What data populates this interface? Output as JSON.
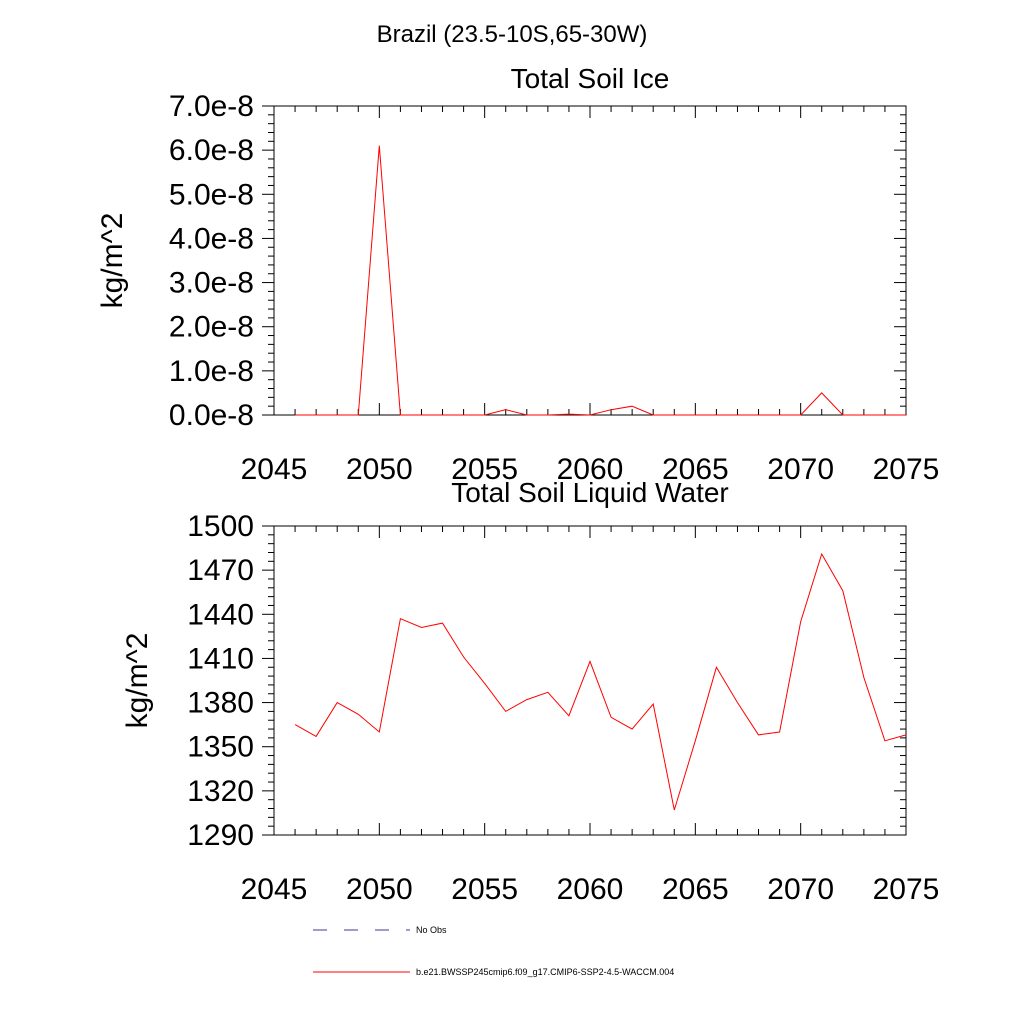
{
  "figure": {
    "title": "Brazil (23.5-10S,65-30W)"
  },
  "legend": {
    "placement": "bottom",
    "items": [
      {
        "label": "No Obs",
        "color": "#3b3b8f",
        "style": "dashed"
      },
      {
        "label": "b.e21.BWSSP245cmip6.f09_g17.CMIP6-SSP2-4.5-WACCM.004",
        "color": "#ff0000",
        "style": "solid"
      }
    ]
  },
  "chart_data": [
    {
      "type": "line",
      "title": "Total Soil Ice",
      "xlabel": "",
      "ylabel": "kg/m^2",
      "xlim": [
        2045,
        2075
      ],
      "ylim": [
        0,
        7e-08
      ],
      "xticks": [
        2045,
        2050,
        2055,
        2060,
        2065,
        2070,
        2075
      ],
      "xtick_labels": [
        "2045",
        "2050",
        "2055",
        "2060",
        "2065",
        "2070",
        "2075"
      ],
      "yticks": [
        0,
        1e-08,
        2e-08,
        3e-08,
        4e-08,
        5e-08,
        6e-08,
        7e-08
      ],
      "ytick_labels": [
        "0.0e-8",
        "1.0e-8",
        "2.0e-8",
        "3.0e-8",
        "4.0e-8",
        "5.0e-8",
        "6.0e-8",
        "7.0e-8"
      ],
      "grid": false,
      "series": [
        {
          "name": "b.e21.BWSSP245cmip6.f09_g17.CMIP6-SSP2-4.5-WACCM.004",
          "color": "#ff0000",
          "x": [
            2046,
            2047,
            2048,
            2049,
            2050,
            2051,
            2052,
            2053,
            2054,
            2055,
            2056,
            2057,
            2058,
            2059,
            2060,
            2061,
            2062,
            2063,
            2064,
            2065,
            2066,
            2067,
            2068,
            2069,
            2070,
            2071,
            2072,
            2073,
            2074,
            2075
          ],
          "y": [
            0,
            0,
            0,
            0,
            6.1e-08,
            0,
            0,
            0,
            0,
            0,
            1.2e-09,
            0,
            0,
            2e-10,
            0,
            1.2e-09,
            2e-09,
            0,
            0,
            0,
            0,
            0,
            0,
            0,
            0,
            5e-09,
            0,
            0,
            0,
            0
          ]
        }
      ]
    },
    {
      "type": "line",
      "title": "Total Soil Liquid Water",
      "xlabel": "",
      "ylabel": "kg/m^2",
      "xlim": [
        2045,
        2075
      ],
      "ylim": [
        1290,
        1500
      ],
      "xticks": [
        2045,
        2050,
        2055,
        2060,
        2065,
        2070,
        2075
      ],
      "xtick_labels": [
        "2045",
        "2050",
        "2055",
        "2060",
        "2065",
        "2070",
        "2075"
      ],
      "yticks": [
        1290,
        1320,
        1350,
        1380,
        1410,
        1440,
        1470,
        1500
      ],
      "ytick_labels": [
        "1290",
        "1320",
        "1350",
        "1380",
        "1410",
        "1440",
        "1470",
        "1500"
      ],
      "grid": false,
      "series": [
        {
          "name": "b.e21.BWSSP245cmip6.f09_g17.CMIP6-SSP2-4.5-WACCM.004",
          "color": "#ff0000",
          "x": [
            2046,
            2047,
            2048,
            2049,
            2050,
            2051,
            2052,
            2053,
            2054,
            2055,
            2056,
            2057,
            2058,
            2059,
            2060,
            2061,
            2062,
            2063,
            2064,
            2065,
            2066,
            2067,
            2068,
            2069,
            2070,
            2071,
            2072,
            2073,
            2074,
            2075
          ],
          "y": [
            1365,
            1357,
            1380,
            1372,
            1360,
            1437,
            1431,
            1434,
            1411,
            1393,
            1374,
            1382,
            1387,
            1371,
            1408,
            1370,
            1362,
            1379,
            1307,
            1354,
            1404,
            1380,
            1358,
            1360,
            1435,
            1481,
            1456,
            1397,
            1354,
            1358
          ]
        }
      ]
    }
  ]
}
